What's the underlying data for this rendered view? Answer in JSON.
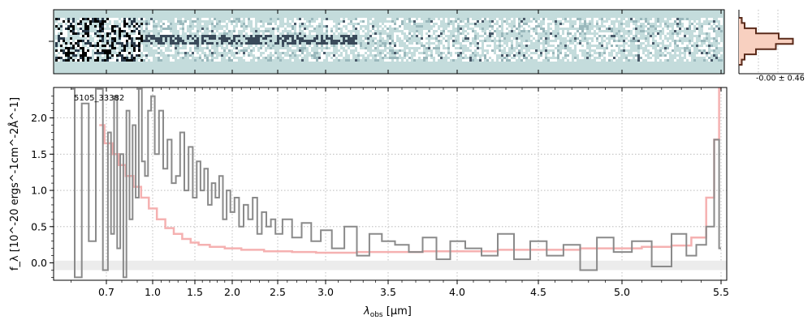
{
  "chart_data": {
    "type": "line",
    "object_label": "5105_33382",
    "xlabel_main": "λ",
    "xlabel_sub": "obs",
    "xlabel_unit": " [μm]",
    "ylabel_text": "f_λ [10^-20 ergs^-1cm^-2Å^-1]",
    "xlim": [
      0.55,
      5.53
    ],
    "ylim": [
      -0.24,
      2.42
    ],
    "x_ticks": [
      0.7,
      1.0,
      1.5,
      2.0,
      2.5,
      3.0,
      3.5,
      4.0,
      4.5,
      5.0,
      5.5
    ],
    "x_tick_labels": [
      "0.7",
      "1.0",
      "1.5",
      "2.0",
      "2.5",
      "3.0",
      "3.5",
      "4.0",
      "4.5",
      "5.0",
      "5.5"
    ],
    "y_ticks": [
      0.0,
      0.5,
      1.0,
      1.5,
      2.0
    ],
    "y_tick_labels": [
      "0.0",
      "0.5",
      "1.0",
      "1.5",
      "2.0"
    ],
    "grid": true,
    "hist_label": "-0.00 ± 0.46",
    "colors": {
      "spectrum": "#8a8a8a",
      "model": "#f4a8a8",
      "model_line": "#e07070",
      "zero_band": "#ececec",
      "twod_bg": "#c4dcdc",
      "hist_fill": "#f8d0c0",
      "hist_line": "#5a2a1a"
    },
    "spectrum": {
      "x": [
        0.6,
        0.62,
        0.64,
        0.66,
        0.68,
        0.7,
        0.72,
        0.74,
        0.76,
        0.78,
        0.8,
        0.82,
        0.84,
        0.86,
        0.88,
        0.9,
        0.92,
        0.94,
        0.96,
        0.98,
        1.0,
        1.05,
        1.1,
        1.15,
        1.2,
        1.25,
        1.3,
        1.35,
        1.4,
        1.45,
        1.5,
        1.55,
        1.6,
        1.65,
        1.7,
        1.75,
        1.8,
        1.85,
        1.9,
        1.95,
        2.0,
        2.05,
        2.1,
        2.15,
        2.2,
        2.25,
        2.3,
        2.35,
        2.4,
        2.45,
        2.5,
        2.6,
        2.7,
        2.8,
        2.9,
        3.0,
        3.1,
        3.2,
        3.3,
        3.4,
        3.5,
        3.6,
        3.7,
        3.8,
        3.9,
        4.0,
        4.1,
        4.2,
        4.3,
        4.4,
        4.5,
        4.6,
        4.7,
        4.8,
        4.9,
        5.0,
        5.1,
        5.2,
        5.3,
        5.35,
        5.4,
        5.45,
        5.48,
        5.5
      ],
      "y": [
        2.4,
        -0.2,
        2.2,
        0.3,
        2.4,
        -0.1,
        1.8,
        0.4,
        2.3,
        0.2,
        1.5,
        -0.2,
        2.1,
        0.6,
        1.9,
        0.9,
        2.4,
        1.4,
        1.2,
        2.1,
        2.3,
        1.5,
        2.1,
        1.3,
        1.7,
        1.1,
        1.2,
        1.8,
        1.0,
        1.6,
        0.9,
        1.4,
        1.0,
        1.3,
        0.8,
        1.1,
        0.9,
        1.2,
        0.6,
        1.0,
        0.7,
        0.9,
        0.5,
        0.8,
        0.6,
        0.9,
        0.4,
        0.7,
        0.5,
        0.6,
        0.4,
        0.6,
        0.35,
        0.55,
        0.3,
        0.45,
        0.2,
        0.5,
        0.1,
        0.4,
        0.3,
        0.25,
        0.15,
        0.35,
        0.05,
        0.3,
        0.2,
        0.1,
        0.4,
        0.05,
        0.3,
        0.1,
        0.25,
        -0.1,
        0.35,
        0.15,
        0.3,
        -0.05,
        0.4,
        0.1,
        0.25,
        0.5,
        1.7,
        0.2
      ]
    },
    "model": {
      "x": [
        0.68,
        0.72,
        0.76,
        0.8,
        0.85,
        0.9,
        0.95,
        1.0,
        1.1,
        1.2,
        1.3,
        1.4,
        1.5,
        1.6,
        1.8,
        2.0,
        2.2,
        2.5,
        2.8,
        3.0,
        3.5,
        4.0,
        4.5,
        5.0,
        5.2,
        5.3,
        5.4,
        5.45,
        5.48,
        5.5
      ],
      "y": [
        1.9,
        1.65,
        1.5,
        1.35,
        1.2,
        1.05,
        0.9,
        0.75,
        0.6,
        0.48,
        0.4,
        0.33,
        0.28,
        0.25,
        0.22,
        0.2,
        0.18,
        0.16,
        0.15,
        0.14,
        0.15,
        0.16,
        0.18,
        0.2,
        0.22,
        0.24,
        0.35,
        0.9,
        1.7,
        2.4
      ]
    },
    "histogram": {
      "bins": [
        -2.0,
        -1.5,
        -1.0,
        -0.5,
        0.0,
        0.5,
        1.0,
        1.5,
        2.0
      ],
      "counts": [
        0.05,
        0.1,
        0.3,
        0.7,
        0.95,
        0.65,
        0.3,
        0.1,
        0.05
      ]
    }
  }
}
